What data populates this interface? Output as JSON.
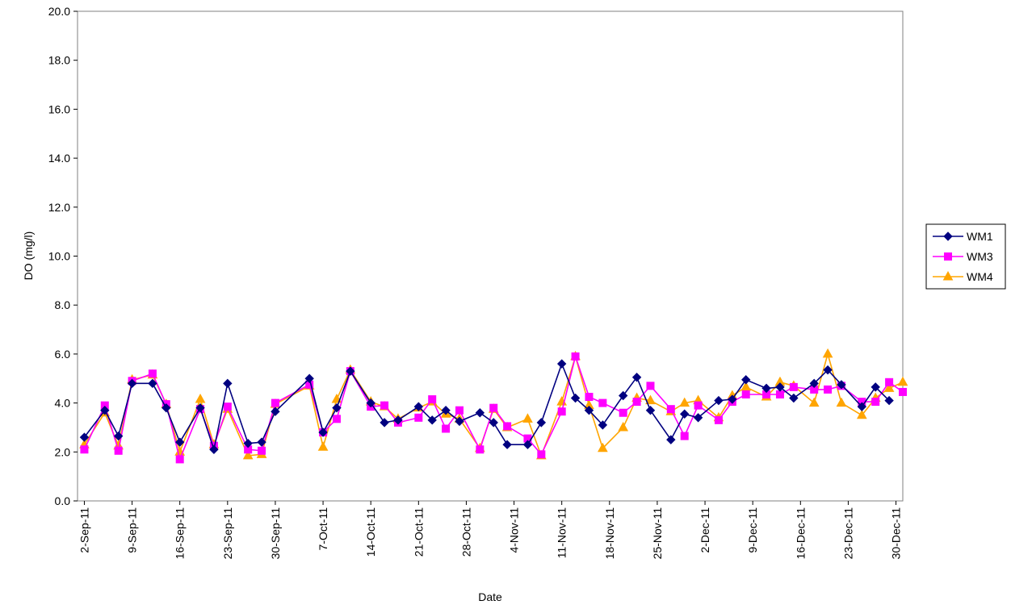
{
  "chart_data": {
    "type": "line",
    "xlabel": "Date",
    "ylabel": "DO (mg/l)",
    "ylim": [
      0,
      20
    ],
    "ytick_step": 2,
    "ytick_labels": [
      "0.0",
      "2.0",
      "4.0",
      "6.0",
      "8.0",
      "10.0",
      "12.0",
      "14.0",
      "16.0",
      "18.0",
      "20.0"
    ],
    "xlim": [
      "2011-09-01",
      "2011-12-31"
    ],
    "xtick_dates": [
      "2011-09-02",
      "2011-09-09",
      "2011-09-16",
      "2011-09-23",
      "2011-09-30",
      "2011-10-07",
      "2011-10-14",
      "2011-10-21",
      "2011-10-28",
      "2011-11-04",
      "2011-11-11",
      "2011-11-18",
      "2011-11-25",
      "2011-12-02",
      "2011-12-09",
      "2011-12-16",
      "2011-12-23",
      "2011-12-30"
    ],
    "xtick_labels": [
      "2-Sep-11",
      "9-Sep-11",
      "16-Sep-11",
      "23-Sep-11",
      "30-Sep-11",
      "7-Oct-11",
      "14-Oct-11",
      "21-Oct-11",
      "28-Oct-11",
      "4-Nov-11",
      "11-Nov-11",
      "18-Nov-11",
      "25-Nov-11",
      "2-Dec-11",
      "9-Dec-11",
      "16-Dec-11",
      "23-Dec-11",
      "30-Dec-11"
    ],
    "grid": false,
    "legend_position": "right",
    "series": [
      {
        "name": "WM1",
        "color": "#000080",
        "marker": "diamond",
        "points": [
          [
            "2011-09-02",
            2.6
          ],
          [
            "2011-09-05",
            3.7
          ],
          [
            "2011-09-07",
            2.65
          ],
          [
            "2011-09-09",
            4.8
          ],
          [
            "2011-09-12",
            4.8
          ],
          [
            "2011-09-14",
            3.8
          ],
          [
            "2011-09-16",
            2.4
          ],
          [
            "2011-09-19",
            3.8
          ],
          [
            "2011-09-21",
            2.1
          ],
          [
            "2011-09-23",
            4.8
          ],
          [
            "2011-09-26",
            2.35
          ],
          [
            "2011-09-28",
            2.4
          ],
          [
            "2011-09-30",
            3.65
          ],
          [
            "2011-10-05",
            5.0
          ],
          [
            "2011-10-07",
            2.8
          ],
          [
            "2011-10-09",
            3.8
          ],
          [
            "2011-10-11",
            5.3
          ],
          [
            "2011-10-14",
            4.0
          ],
          [
            "2011-10-16",
            3.2
          ],
          [
            "2011-10-18",
            3.3
          ],
          [
            "2011-10-21",
            3.85
          ],
          [
            "2011-10-23",
            3.3
          ],
          [
            "2011-10-25",
            3.7
          ],
          [
            "2011-10-27",
            3.25
          ],
          [
            "2011-10-30",
            3.6
          ],
          [
            "2011-11-01",
            3.2
          ],
          [
            "2011-11-03",
            2.3
          ],
          [
            "2011-11-06",
            2.3
          ],
          [
            "2011-11-08",
            3.2
          ],
          [
            "2011-11-11",
            5.6
          ],
          [
            "2011-11-13",
            4.2
          ],
          [
            "2011-11-15",
            3.7
          ],
          [
            "2011-11-17",
            3.1
          ],
          [
            "2011-11-20",
            4.3
          ],
          [
            "2011-11-22",
            5.05
          ],
          [
            "2011-11-24",
            3.7
          ],
          [
            "2011-11-27",
            2.5
          ],
          [
            "2011-11-29",
            3.55
          ],
          [
            "2011-12-01",
            3.4
          ],
          [
            "2011-12-04",
            4.1
          ],
          [
            "2011-12-06",
            4.15
          ],
          [
            "2011-12-08",
            4.95
          ],
          [
            "2011-12-11",
            4.6
          ],
          [
            "2011-12-13",
            4.65
          ],
          [
            "2011-12-15",
            4.2
          ],
          [
            "2011-12-18",
            4.8
          ],
          [
            "2011-12-20",
            5.35
          ],
          [
            "2011-12-22",
            4.75
          ],
          [
            "2011-12-25",
            3.85
          ],
          [
            "2011-12-27",
            4.65
          ],
          [
            "2011-12-29",
            4.1
          ]
        ]
      },
      {
        "name": "WM3",
        "color": "#ff00ff",
        "marker": "square",
        "points": [
          [
            "2011-09-02",
            2.1
          ],
          [
            "2011-09-05",
            3.9
          ],
          [
            "2011-09-07",
            2.05
          ],
          [
            "2011-09-09",
            4.9
          ],
          [
            "2011-09-12",
            5.2
          ],
          [
            "2011-09-14",
            3.95
          ],
          [
            "2011-09-16",
            1.7
          ],
          [
            "2011-09-19",
            3.75
          ],
          [
            "2011-09-21",
            2.25
          ],
          [
            "2011-09-23",
            3.85
          ],
          [
            "2011-09-26",
            2.1
          ],
          [
            "2011-09-28",
            2.05
          ],
          [
            "2011-09-30",
            4.0
          ],
          [
            "2011-10-05",
            4.75
          ],
          [
            "2011-10-07",
            2.8
          ],
          [
            "2011-10-09",
            3.35
          ],
          [
            "2011-10-11",
            5.3
          ],
          [
            "2011-10-14",
            3.85
          ],
          [
            "2011-10-16",
            3.9
          ],
          [
            "2011-10-18",
            3.2
          ],
          [
            "2011-10-21",
            3.4
          ],
          [
            "2011-10-23",
            4.15
          ],
          [
            "2011-10-25",
            2.95
          ],
          [
            "2011-10-27",
            3.7
          ],
          [
            "2011-10-30",
            2.1
          ],
          [
            "2011-11-01",
            3.8
          ],
          [
            "2011-11-03",
            3.05
          ],
          [
            "2011-11-06",
            2.55
          ],
          [
            "2011-11-08",
            1.9
          ],
          [
            "2011-11-11",
            3.65
          ],
          [
            "2011-11-13",
            5.9
          ],
          [
            "2011-11-15",
            4.25
          ],
          [
            "2011-11-17",
            4.0
          ],
          [
            "2011-11-20",
            3.6
          ],
          [
            "2011-11-22",
            4.05
          ],
          [
            "2011-11-24",
            4.7
          ],
          [
            "2011-11-27",
            3.75
          ],
          [
            "2011-11-29",
            2.65
          ],
          [
            "2011-12-01",
            3.9
          ],
          [
            "2011-12-04",
            3.3
          ],
          [
            "2011-12-06",
            4.05
          ],
          [
            "2011-12-08",
            4.35
          ],
          [
            "2011-12-11",
            4.35
          ],
          [
            "2011-12-13",
            4.35
          ],
          [
            "2011-12-15",
            4.65
          ],
          [
            "2011-12-18",
            4.55
          ],
          [
            "2011-12-20",
            4.55
          ],
          [
            "2011-12-22",
            4.7
          ],
          [
            "2011-12-25",
            4.05
          ],
          [
            "2011-12-27",
            4.05
          ],
          [
            "2011-12-29",
            4.85
          ],
          [
            "2011-12-31",
            4.45
          ]
        ]
      },
      {
        "name": "WM4",
        "color": "#ffa500",
        "marker": "triangle",
        "points": [
          [
            "2011-09-02",
            2.3
          ],
          [
            "2011-09-05",
            3.6
          ],
          [
            "2011-09-07",
            2.25
          ],
          [
            "2011-09-09",
            4.95
          ],
          [
            "2011-09-12",
            5.15
          ],
          [
            "2011-09-14",
            3.95
          ],
          [
            "2011-09-16",
            2.0
          ],
          [
            "2011-09-19",
            4.15
          ],
          [
            "2011-09-21",
            2.3
          ],
          [
            "2011-09-23",
            3.75
          ],
          [
            "2011-09-26",
            1.85
          ],
          [
            "2011-09-28",
            1.9
          ],
          [
            "2011-09-30",
            3.95
          ],
          [
            "2011-10-05",
            4.7
          ],
          [
            "2011-10-07",
            2.2
          ],
          [
            "2011-10-09",
            4.15
          ],
          [
            "2011-10-11",
            5.35
          ],
          [
            "2011-10-14",
            4.05
          ],
          [
            "2011-10-16",
            3.85
          ],
          [
            "2011-10-18",
            3.35
          ],
          [
            "2011-10-21",
            3.8
          ],
          [
            "2011-10-23",
            4.05
          ],
          [
            "2011-10-25",
            3.55
          ],
          [
            "2011-10-27",
            3.35
          ],
          [
            "2011-10-30",
            2.15
          ],
          [
            "2011-11-01",
            3.75
          ],
          [
            "2011-11-03",
            3.0
          ],
          [
            "2011-11-06",
            3.35
          ],
          [
            "2011-11-08",
            1.85
          ],
          [
            "2011-11-11",
            4.05
          ],
          [
            "2011-11-13",
            5.9
          ],
          [
            "2011-11-15",
            3.9
          ],
          [
            "2011-11-17",
            2.15
          ],
          [
            "2011-11-20",
            3.0
          ],
          [
            "2011-11-22",
            4.2
          ],
          [
            "2011-11-24",
            4.1
          ],
          [
            "2011-11-27",
            3.65
          ],
          [
            "2011-11-29",
            4.0
          ],
          [
            "2011-12-01",
            4.1
          ],
          [
            "2011-12-04",
            3.4
          ],
          [
            "2011-12-06",
            4.3
          ],
          [
            "2011-12-08",
            4.65
          ],
          [
            "2011-12-11",
            4.25
          ],
          [
            "2011-12-13",
            4.85
          ],
          [
            "2011-12-15",
            4.7
          ],
          [
            "2011-12-18",
            4.0
          ],
          [
            "2011-12-20",
            6.0
          ],
          [
            "2011-12-22",
            4.0
          ],
          [
            "2011-12-25",
            3.5
          ],
          [
            "2011-12-27",
            4.2
          ],
          [
            "2011-12-29",
            4.6
          ],
          [
            "2011-12-31",
            4.85
          ]
        ]
      }
    ]
  }
}
